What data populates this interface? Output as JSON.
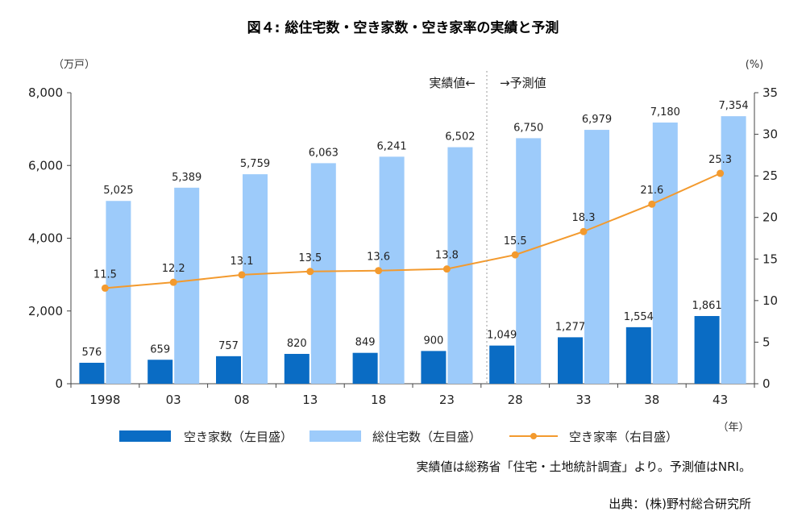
{
  "chart_data": {
    "type": "bar",
    "title": "図４: 総住宅数・空き家数・空き家率の実績と予測",
    "categories": [
      "1998",
      "03",
      "08",
      "13",
      "18",
      "23",
      "28",
      "33",
      "38",
      "43"
    ],
    "series": [
      {
        "name": "空き家数（左目盛）",
        "kind": "bar",
        "axis": "left",
        "color": "#0a6cc4",
        "values": [
          576,
          659,
          757,
          820,
          849,
          900,
          1049,
          1277,
          1554,
          1861
        ],
        "labels": [
          "576",
          "659",
          "757",
          "820",
          "849",
          "900",
          "1,049",
          "1,277",
          "1,554",
          "1,861"
        ]
      },
      {
        "name": "総住宅数（左目盛）",
        "kind": "bar",
        "axis": "left",
        "color": "#9dcbfa",
        "values": [
          5025,
          5389,
          5759,
          6063,
          6241,
          6502,
          6750,
          6979,
          7180,
          7354
        ],
        "labels": [
          "5,025",
          "5,389",
          "5,759",
          "6,063",
          "6,241",
          "6,502",
          "6,750",
          "6,979",
          "7,180",
          "7,354"
        ]
      },
      {
        "name": "空き家率（右目盛）",
        "kind": "line",
        "axis": "right",
        "color": "#f39a2e",
        "values": [
          11.5,
          12.2,
          13.1,
          13.5,
          13.6,
          13.8,
          15.5,
          18.3,
          21.6,
          25.3
        ],
        "labels": [
          "11.5",
          "12.2",
          "13.1",
          "13.5",
          "13.6",
          "13.8",
          "15.5",
          "18.3",
          "21.6",
          "25.3"
        ]
      }
    ],
    "y_left": {
      "unit": "（万戸）",
      "ylim": [
        0,
        8000
      ],
      "ticks": [
        0,
        2000,
        4000,
        6000,
        8000
      ],
      "tick_labels": [
        "0",
        "2,000",
        "4,000",
        "6,000",
        "8,000"
      ]
    },
    "y_right": {
      "unit": "(%)",
      "ylim": [
        0,
        35
      ],
      "ticks": [
        0,
        5,
        10,
        15,
        20,
        25,
        30,
        35
      ],
      "tick_labels": [
        "0",
        "5",
        "10",
        "15",
        "20",
        "25",
        "30",
        "35"
      ]
    },
    "x_unit": "（年）",
    "phase_actual": "実績値←",
    "phase_forecast": "→予測値",
    "note": "実績値は総務省「住宅・土地統計調査」より。予測値はNRI。",
    "source": "出典：(株)野村総合研究所",
    "grid": false,
    "legend_position": "bottom"
  }
}
